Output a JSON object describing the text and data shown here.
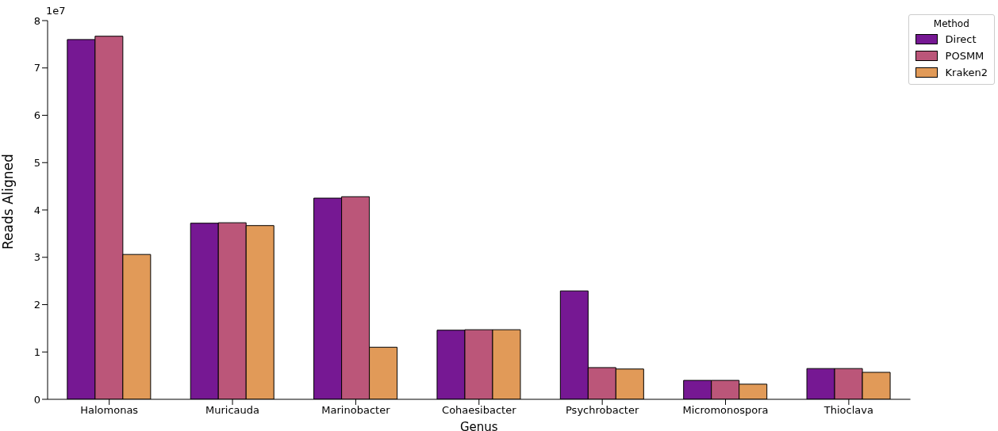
{
  "chart_data": {
    "type": "bar",
    "xlabel": "Genus",
    "ylabel": "Reads Aligned",
    "legend_title": "Method",
    "legend": "top right",
    "grid": false,
    "categories": [
      "Halomonas",
      "Muricauda",
      "Marinobacter",
      "Cohaesibacter",
      "Psychrobacter",
      "Micromonospora",
      "Thioclava"
    ],
    "series": [
      {
        "name": "Direct",
        "color": "#761893",
        "values": [
          7.6,
          3.72,
          4.25,
          1.46,
          2.29,
          0.4,
          0.65
        ]
      },
      {
        "name": "POSMM",
        "color": "#bb5679",
        "values": [
          7.67,
          3.73,
          4.28,
          1.47,
          0.67,
          0.4,
          0.65
        ]
      },
      {
        "name": "Kraken2",
        "color": "#e19a58",
        "values": [
          3.06,
          3.67,
          1.1,
          1.47,
          0.64,
          0.32,
          0.57
        ]
      }
    ],
    "ylim": [
      0,
      8
    ],
    "yticks": [
      0,
      1,
      2,
      3,
      4,
      5,
      6,
      7,
      8
    ],
    "annotations": [
      "1e7"
    ]
  }
}
